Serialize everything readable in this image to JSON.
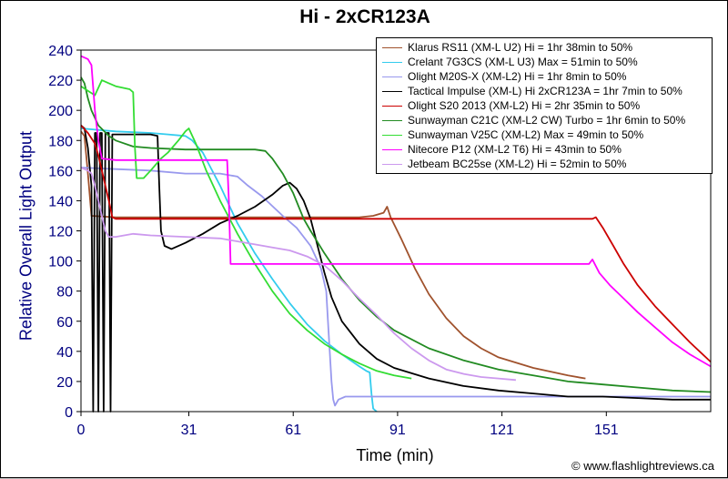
{
  "chart_data": {
    "type": "line",
    "title": "Hi - 2xCR123A",
    "xlabel": "Time (min)",
    "ylabel": "Relative Overall Light Output",
    "xlim": [
      0,
      181
    ],
    "ylim": [
      0,
      240
    ],
    "xticks": [
      0,
      31,
      61,
      91,
      121,
      151
    ],
    "yticks": [
      0,
      20,
      40,
      60,
      80,
      100,
      120,
      140,
      160,
      180,
      200,
      220,
      240
    ],
    "grid": false,
    "legend_position": "top-right",
    "credit": "© www.flashlightreviews.ca",
    "series": [
      {
        "name": "Klarus RS11 (XM-L U2) Hi = 1hr 38min to 50%",
        "color": "#a0522d",
        "points": [
          [
            0,
            186
          ],
          [
            1,
            183
          ],
          [
            2,
            158
          ],
          [
            3,
            130
          ],
          [
            10,
            129
          ],
          [
            60,
            129
          ],
          [
            80,
            129
          ],
          [
            84,
            130
          ],
          [
            87,
            132
          ],
          [
            88,
            136
          ],
          [
            89,
            129
          ],
          [
            92,
            115
          ],
          [
            96,
            95
          ],
          [
            100,
            78
          ],
          [
            105,
            62
          ],
          [
            110,
            50
          ],
          [
            115,
            42
          ],
          [
            120,
            36
          ],
          [
            130,
            29
          ],
          [
            140,
            24
          ],
          [
            145,
            22
          ]
        ]
      },
      {
        "name": "Crelant 7G3CS (XM-L U3) Max = 51min to 50%",
        "color": "#33ccee",
        "points": [
          [
            0,
            188
          ],
          [
            5,
            187
          ],
          [
            10,
            186
          ],
          [
            20,
            185
          ],
          [
            25,
            184
          ],
          [
            30,
            183
          ],
          [
            32,
            180
          ],
          [
            35,
            172
          ],
          [
            40,
            150
          ],
          [
            45,
            125
          ],
          [
            50,
            105
          ],
          [
            55,
            88
          ],
          [
            60,
            72
          ],
          [
            65,
            58
          ],
          [
            70,
            47
          ],
          [
            75,
            38
          ],
          [
            80,
            30
          ],
          [
            82,
            27
          ],
          [
            83,
            26
          ],
          [
            83.5,
            12
          ],
          [
            84,
            2
          ],
          [
            85,
            0
          ]
        ]
      },
      {
        "name": "Olight M20S-X (XM-L2) Hi = 1hr 8min to 50%",
        "color": "#9999ee",
        "points": [
          [
            0,
            162
          ],
          [
            10,
            161
          ],
          [
            20,
            160
          ],
          [
            30,
            158
          ],
          [
            40,
            158
          ],
          [
            45,
            156
          ],
          [
            48,
            150
          ],
          [
            52,
            143
          ],
          [
            58,
            130
          ],
          [
            62,
            122
          ],
          [
            66,
            110
          ],
          [
            69,
            95
          ],
          [
            70.5,
            80
          ],
          [
            71,
            60
          ],
          [
            72,
            20
          ],
          [
            72.5,
            8
          ],
          [
            73,
            4
          ],
          [
            74,
            8
          ],
          [
            76,
            10
          ],
          [
            100,
            10
          ],
          [
            130,
            10
          ],
          [
            150,
            10
          ],
          [
            181,
            10
          ]
        ]
      },
      {
        "name": "Tactical Impulse (XM-L) Hi 2xCR123A = 1hr 7min to 50%",
        "color": "#000000",
        "points": [
          [
            0,
            190
          ],
          [
            1,
            188
          ],
          [
            2,
            175
          ],
          [
            3,
            150
          ],
          [
            3.5,
            0
          ],
          [
            4,
            185
          ],
          [
            4.5,
            185
          ],
          [
            5,
            0
          ],
          [
            5.5,
            185
          ],
          [
            6,
            185
          ],
          [
            6.5,
            0
          ],
          [
            7,
            185
          ],
          [
            8,
            185
          ],
          [
            8.5,
            0
          ],
          [
            9,
            184
          ],
          [
            20,
            184
          ],
          [
            22,
            183
          ],
          [
            22.5,
            150
          ],
          [
            23,
            120
          ],
          [
            24,
            110
          ],
          [
            26,
            108
          ],
          [
            30,
            112
          ],
          [
            35,
            118
          ],
          [
            40,
            125
          ],
          [
            45,
            130
          ],
          [
            50,
            136
          ],
          [
            55,
            144
          ],
          [
            58,
            150
          ],
          [
            60,
            152
          ],
          [
            62,
            148
          ],
          [
            64,
            140
          ],
          [
            66,
            128
          ],
          [
            68,
            110
          ],
          [
            70,
            92
          ],
          [
            72,
            76
          ],
          [
            75,
            60
          ],
          [
            80,
            45
          ],
          [
            85,
            35
          ],
          [
            90,
            29
          ],
          [
            100,
            22
          ],
          [
            110,
            17
          ],
          [
            120,
            14
          ],
          [
            130,
            12
          ],
          [
            140,
            10
          ],
          [
            150,
            10
          ],
          [
            160,
            9
          ],
          [
            170,
            8
          ],
          [
            181,
            8
          ]
        ]
      },
      {
        "name": "Olight S20 2013 (XM-L2) Hi = 2hr 35min to 50%",
        "color": "#cc0000",
        "points": [
          [
            0,
            190
          ],
          [
            2,
            185
          ],
          [
            4,
            178
          ],
          [
            5,
            170
          ],
          [
            6,
            160
          ],
          [
            7,
            150
          ],
          [
            8,
            140
          ],
          [
            9,
            129
          ],
          [
            10,
            128
          ],
          [
            40,
            128
          ],
          [
            80,
            128
          ],
          [
            120,
            128
          ],
          [
            140,
            128
          ],
          [
            147,
            128
          ],
          [
            148,
            129
          ],
          [
            150,
            122
          ],
          [
            153,
            110
          ],
          [
            156,
            98
          ],
          [
            160,
            84
          ],
          [
            165,
            70
          ],
          [
            170,
            58
          ],
          [
            175,
            46
          ],
          [
            181,
            33
          ]
        ]
      },
      {
        "name": "Sunwayman C21C (XM-L2 CW) Turbo = 1hr 6min to 50%",
        "color": "#228b22",
        "points": [
          [
            0,
            222
          ],
          [
            1,
            218
          ],
          [
            2,
            208
          ],
          [
            3,
            200
          ],
          [
            5,
            190
          ],
          [
            8,
            183
          ],
          [
            10,
            180
          ],
          [
            15,
            176
          ],
          [
            20,
            175
          ],
          [
            30,
            174
          ],
          [
            40,
            174
          ],
          [
            50,
            174
          ],
          [
            53,
            173
          ],
          [
            55,
            168
          ],
          [
            58,
            158
          ],
          [
            61,
            145
          ],
          [
            64,
            128
          ],
          [
            66,
            120
          ],
          [
            70,
            105
          ],
          [
            75,
            88
          ],
          [
            80,
            74
          ],
          [
            85,
            63
          ],
          [
            90,
            54
          ],
          [
            100,
            42
          ],
          [
            110,
            34
          ],
          [
            120,
            28
          ],
          [
            130,
            24
          ],
          [
            140,
            20
          ],
          [
            150,
            18
          ],
          [
            160,
            16
          ],
          [
            170,
            14
          ],
          [
            181,
            13
          ]
        ]
      },
      {
        "name": "Sunwayman V25C (XM-L2) Max = 49min to 50%",
        "color": "#33dd33",
        "points": [
          [
            0,
            216
          ],
          [
            2,
            213
          ],
          [
            4,
            210
          ],
          [
            6,
            220
          ],
          [
            8,
            218
          ],
          [
            10,
            216
          ],
          [
            14,
            214
          ],
          [
            15,
            212
          ],
          [
            15.5,
            175
          ],
          [
            16,
            155
          ],
          [
            18,
            155
          ],
          [
            20,
            160
          ],
          [
            23,
            168
          ],
          [
            25,
            172
          ],
          [
            28,
            180
          ],
          [
            30,
            186
          ],
          [
            31,
            188
          ],
          [
            33,
            178
          ],
          [
            36,
            160
          ],
          [
            40,
            140
          ],
          [
            45,
            118
          ],
          [
            50,
            98
          ],
          [
            55,
            80
          ],
          [
            60,
            65
          ],
          [
            65,
            54
          ],
          [
            70,
            45
          ],
          [
            75,
            38
          ],
          [
            80,
            32
          ],
          [
            85,
            27
          ],
          [
            90,
            24
          ],
          [
            95,
            22
          ]
        ]
      },
      {
        "name": "Nitecore P12 (XM-L2 T6) Hi = 43min to 50%",
        "color": "#ff00ff",
        "points": [
          [
            0,
            236
          ],
          [
            2,
            234
          ],
          [
            3,
            230
          ],
          [
            4,
            200
          ],
          [
            5,
            180
          ],
          [
            6,
            168
          ],
          [
            10,
            167
          ],
          [
            20,
            167
          ],
          [
            30,
            167
          ],
          [
            40,
            167
          ],
          [
            42,
            167
          ],
          [
            42.5,
            140
          ],
          [
            43,
            98
          ],
          [
            44,
            98
          ],
          [
            80,
            98
          ],
          [
            120,
            98
          ],
          [
            140,
            98
          ],
          [
            146,
            98
          ],
          [
            147,
            101
          ],
          [
            149,
            92
          ],
          [
            152,
            84
          ],
          [
            156,
            75
          ],
          [
            160,
            66
          ],
          [
            165,
            56
          ],
          [
            170,
            46
          ],
          [
            175,
            38
          ],
          [
            181,
            30
          ]
        ]
      },
      {
        "name": "Jetbeam BC25se (XM-L2) Hi = 52min to 50%",
        "color": "#cc99ee",
        "points": [
          [
            0,
            162
          ],
          [
            2,
            160
          ],
          [
            3,
            158
          ],
          [
            4,
            150
          ],
          [
            5,
            140
          ],
          [
            6,
            130
          ],
          [
            7,
            120
          ],
          [
            8,
            116
          ],
          [
            10,
            116
          ],
          [
            15,
            118
          ],
          [
            20,
            117
          ],
          [
            30,
            116
          ],
          [
            40,
            115
          ],
          [
            50,
            111
          ],
          [
            55,
            109
          ],
          [
            60,
            107
          ],
          [
            65,
            103
          ],
          [
            70,
            97
          ],
          [
            75,
            87
          ],
          [
            80,
            75
          ],
          [
            85,
            64
          ],
          [
            90,
            52
          ],
          [
            95,
            42
          ],
          [
            100,
            34
          ],
          [
            105,
            28
          ],
          [
            110,
            25
          ],
          [
            115,
            23
          ],
          [
            120,
            22
          ],
          [
            125,
            21
          ]
        ]
      }
    ]
  }
}
